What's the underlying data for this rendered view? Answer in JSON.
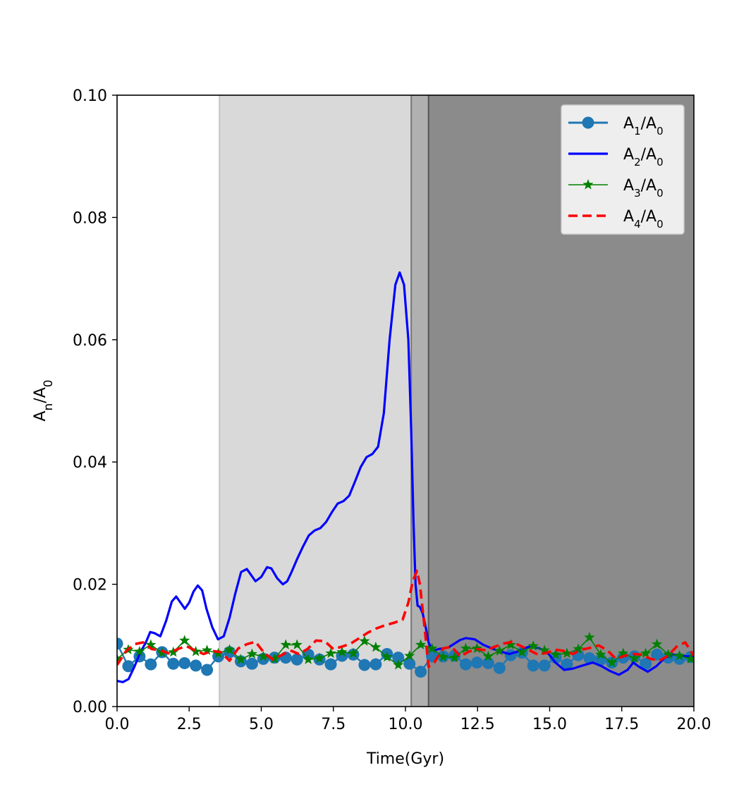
{
  "chart_data": {
    "type": "line",
    "title": "",
    "xlabel": "Time(Gyr)",
    "ylabel": "A_n/A_0",
    "xlim": [
      0,
      20
    ],
    "ylim": [
      0,
      0.1
    ],
    "xticks": [
      "0.0",
      "2.5",
      "5.0",
      "7.5",
      "10.0",
      "12.5",
      "15.0",
      "17.5",
      "20.0"
    ],
    "yticks": [
      "0.00",
      "0.02",
      "0.04",
      "0.06",
      "0.08",
      "0.10"
    ],
    "grid": false,
    "legend_position": "top-right",
    "shaded_regions": [
      {
        "x0": 3.55,
        "x1": 10.2,
        "color": "#d9d9d9"
      },
      {
        "x0": 10.2,
        "x1": 10.8,
        "color": "#b0b0b0"
      },
      {
        "x0": 10.8,
        "x1": 20.0,
        "color": "#8b8b8b"
      }
    ],
    "vertical_lines": [
      {
        "x": 3.55,
        "color": "#c4c4c4"
      },
      {
        "x": 10.2,
        "color": "#777777"
      },
      {
        "x": 10.8,
        "color": "#555555"
      }
    ],
    "series": [
      {
        "name": "A1/A0",
        "sub": "1",
        "color": "#1f77b4",
        "style": "line-circle",
        "x": [
          0.0,
          0.39,
          0.78,
          1.17,
          1.56,
          1.95,
          2.34,
          2.73,
          3.12,
          3.51,
          3.9,
          4.29,
          4.68,
          5.07,
          5.46,
          5.85,
          6.24,
          6.63,
          7.02,
          7.41,
          7.8,
          8.19,
          8.58,
          8.97,
          9.36,
          9.75,
          10.14,
          10.53,
          10.92,
          11.31,
          11.7,
          12.09,
          12.48,
          12.87,
          13.26,
          13.65,
          14.04,
          14.43,
          14.82,
          15.21,
          15.6,
          15.99,
          16.38,
          16.77,
          17.16,
          17.55,
          17.94,
          18.33,
          18.72,
          19.11,
          19.5,
          19.89
        ],
        "y": [
          0.0103,
          0.0066,
          0.0082,
          0.0069,
          0.0089,
          0.007,
          0.0071,
          0.0067,
          0.006,
          0.0082,
          0.0089,
          0.0074,
          0.007,
          0.0078,
          0.008,
          0.008,
          0.0077,
          0.0085,
          0.0077,
          0.0069,
          0.0083,
          0.0085,
          0.0068,
          0.0069,
          0.0086,
          0.008,
          0.007,
          0.0057,
          0.0082,
          0.0082,
          0.0083,
          0.0069,
          0.0072,
          0.0071,
          0.0063,
          0.0084,
          0.0088,
          0.0067,
          0.0067,
          0.008,
          0.0069,
          0.0084,
          0.0079,
          0.0077,
          0.0072,
          0.008,
          0.0082,
          0.007,
          0.0085,
          0.008,
          0.0078,
          0.0081
        ]
      },
      {
        "name": "A2/A0",
        "sub": "2",
        "color": "#0000ff",
        "style": "line",
        "x": [
          0.0,
          0.2,
          0.4,
          0.6,
          0.8,
          1.0,
          1.15,
          1.3,
          1.5,
          1.7,
          1.9,
          2.05,
          2.2,
          2.35,
          2.5,
          2.65,
          2.8,
          2.95,
          3.1,
          3.3,
          3.5,
          3.7,
          3.9,
          4.1,
          4.3,
          4.5,
          4.65,
          4.8,
          5.0,
          5.2,
          5.35,
          5.55,
          5.75,
          5.9,
          6.05,
          6.25,
          6.45,
          6.65,
          6.85,
          7.05,
          7.25,
          7.45,
          7.65,
          7.85,
          8.05,
          8.25,
          8.45,
          8.65,
          8.85,
          9.05,
          9.25,
          9.45,
          9.65,
          9.8,
          9.95,
          10.1,
          10.2,
          10.28,
          10.35,
          10.42,
          10.5,
          10.6,
          10.7,
          10.8,
          10.9,
          11.0,
          11.15,
          11.3,
          11.5,
          11.7,
          11.9,
          12.1,
          12.4,
          12.7,
          13.0,
          13.3,
          13.6,
          13.9,
          14.1,
          14.3,
          14.6,
          14.9,
          15.2,
          15.5,
          15.8,
          16.0,
          16.2,
          16.5,
          16.8,
          17.1,
          17.4,
          17.7,
          17.9,
          18.1,
          18.4,
          18.7,
          19.0,
          19.3,
          19.6,
          19.8,
          20.0
        ],
        "y": [
          0.0042,
          0.004,
          0.0045,
          0.0065,
          0.0088,
          0.0105,
          0.0122,
          0.012,
          0.0115,
          0.014,
          0.0172,
          0.018,
          0.017,
          0.016,
          0.017,
          0.0188,
          0.0198,
          0.019,
          0.016,
          0.013,
          0.011,
          0.0115,
          0.0145,
          0.0185,
          0.022,
          0.0225,
          0.0215,
          0.0205,
          0.0212,
          0.0228,
          0.0226,
          0.021,
          0.02,
          0.0205,
          0.022,
          0.0242,
          0.0262,
          0.028,
          0.0288,
          0.0292,
          0.0302,
          0.0318,
          0.0332,
          0.0336,
          0.0345,
          0.0368,
          0.0392,
          0.0408,
          0.0413,
          0.0425,
          0.048,
          0.06,
          0.069,
          0.071,
          0.069,
          0.06,
          0.045,
          0.03,
          0.02,
          0.0165,
          0.0163,
          0.0152,
          0.013,
          0.0105,
          0.0095,
          0.0092,
          0.0094,
          0.0095,
          0.0097,
          0.0103,
          0.0109,
          0.0112,
          0.011,
          0.0101,
          0.0095,
          0.009,
          0.0086,
          0.009,
          0.0095,
          0.0098,
          0.0096,
          0.009,
          0.0072,
          0.006,
          0.0062,
          0.0065,
          0.0068,
          0.0072,
          0.0066,
          0.0058,
          0.0052,
          0.006,
          0.0072,
          0.0065,
          0.0057,
          0.0066,
          0.008,
          0.0085,
          0.0083,
          0.0082,
          0.0082
        ]
      },
      {
        "name": "A3/A0",
        "sub": "3",
        "color": "#008000",
        "style": "line-star",
        "x": [
          0.0,
          0.39,
          0.78,
          1.17,
          1.56,
          1.95,
          2.34,
          2.73,
          3.12,
          3.51,
          3.9,
          4.29,
          4.68,
          5.07,
          5.46,
          5.85,
          6.24,
          6.63,
          7.02,
          7.41,
          7.8,
          8.19,
          8.58,
          8.97,
          9.36,
          9.75,
          10.14,
          10.53,
          10.92,
          11.31,
          11.7,
          12.09,
          12.48,
          12.87,
          13.26,
          13.65,
          14.04,
          14.43,
          14.82,
          15.21,
          15.6,
          15.99,
          16.38,
          16.77,
          17.16,
          17.55,
          17.94,
          18.33,
          18.72,
          19.11,
          19.5,
          19.89
        ],
        "y": [
          0.0078,
          0.0093,
          0.009,
          0.0101,
          0.0088,
          0.0089,
          0.0108,
          0.009,
          0.0092,
          0.0087,
          0.0093,
          0.0077,
          0.0086,
          0.0082,
          0.0078,
          0.0101,
          0.0101,
          0.0077,
          0.0079,
          0.0087,
          0.0089,
          0.0087,
          0.0107,
          0.0097,
          0.0081,
          0.0068,
          0.0083,
          0.0101,
          0.0095,
          0.0081,
          0.008,
          0.0095,
          0.0095,
          0.0082,
          0.0091,
          0.0101,
          0.0089,
          0.0099,
          0.0092,
          0.0085,
          0.0087,
          0.0094,
          0.0113,
          0.0085,
          0.0072,
          0.0087,
          0.0079,
          0.0087,
          0.0102,
          0.0085,
          0.0083,
          0.0078
        ]
      },
      {
        "name": "A4/A0",
        "sub": "4",
        "color": "#ff0000",
        "style": "dashed",
        "x": [
          0.0,
          0.3,
          0.6,
          0.9,
          1.2,
          1.5,
          1.8,
          2.1,
          2.4,
          2.7,
          3.0,
          3.3,
          3.6,
          3.9,
          4.2,
          4.5,
          4.8,
          5.1,
          5.4,
          5.7,
          6.0,
          6.3,
          6.6,
          6.9,
          7.2,
          7.5,
          7.8,
          8.1,
          8.4,
          8.7,
          9.0,
          9.3,
          9.6,
          9.9,
          10.1,
          10.25,
          10.4,
          10.5,
          10.65,
          10.8,
          11.0,
          11.3,
          11.6,
          11.9,
          12.2,
          12.5,
          12.8,
          13.1,
          13.4,
          13.7,
          14.0,
          14.3,
          14.6,
          14.9,
          15.2,
          15.5,
          15.8,
          16.1,
          16.4,
          16.7,
          17.0,
          17.3,
          17.6,
          17.9,
          18.2,
          18.5,
          18.8,
          19.1,
          19.4,
          19.7,
          20.0
        ],
        "y": [
          0.0068,
          0.009,
          0.0102,
          0.0105,
          0.0094,
          0.0092,
          0.0087,
          0.0094,
          0.0099,
          0.0092,
          0.0086,
          0.0091,
          0.0089,
          0.0075,
          0.0095,
          0.0102,
          0.0106,
          0.0088,
          0.0077,
          0.0084,
          0.0092,
          0.0086,
          0.0094,
          0.0108,
          0.0107,
          0.0094,
          0.0098,
          0.0103,
          0.0112,
          0.0121,
          0.0128,
          0.0133,
          0.0137,
          0.0142,
          0.017,
          0.0205,
          0.0222,
          0.02,
          0.0135,
          0.0065,
          0.0072,
          0.0095,
          0.0098,
          0.0082,
          0.009,
          0.0094,
          0.0092,
          0.0098,
          0.0103,
          0.0106,
          0.0099,
          0.0092,
          0.0085,
          0.0088,
          0.0093,
          0.0091,
          0.0086,
          0.0093,
          0.0096,
          0.01,
          0.0092,
          0.0078,
          0.0083,
          0.0086,
          0.0085,
          0.0078,
          0.0075,
          0.0083,
          0.0098,
          0.0105,
          0.0083
        ]
      }
    ]
  }
}
